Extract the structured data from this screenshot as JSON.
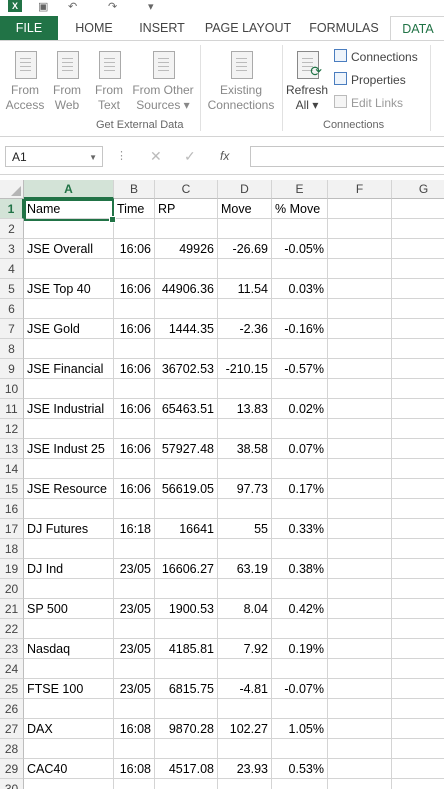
{
  "tabs": [
    "FILE",
    "HOME",
    "INSERT",
    "PAGE LAYOUT",
    "FORMULAS",
    "DATA"
  ],
  "active_tab": "DATA",
  "ribbon": {
    "external": [
      {
        "line1": "From",
        "line2": "Access",
        "icon": "access-db-icon"
      },
      {
        "line1": "From",
        "line2": "Web",
        "icon": "globe-icon"
      },
      {
        "line1": "From",
        "line2": "Text",
        "icon": "text-file-icon"
      },
      {
        "line1": "From Other",
        "line2": "Sources",
        "icon": "other-sources-icon"
      }
    ],
    "existing": {
      "line1": "Existing",
      "line2": "Connections"
    },
    "refresh": {
      "line1": "Refresh",
      "line2": "All"
    },
    "group_external": "Get External Data",
    "connections": {
      "connections": "Connections",
      "properties": "Properties",
      "edit_links": "Edit Links"
    },
    "group_connections": "Connections"
  },
  "namebox": "A1",
  "fx": "fx",
  "columns": [
    "A",
    "B",
    "C",
    "D",
    "E",
    "F",
    "G"
  ],
  "rows": [
    {
      "n": "1",
      "cells": [
        "Name",
        "Time",
        "RP",
        "Move",
        "% Move"
      ]
    },
    {
      "n": "2",
      "cells": [
        "",
        "",
        "",
        "",
        ""
      ]
    },
    {
      "n": "3",
      "cells": [
        "JSE Overall",
        "16:06",
        "49926",
        "-26.69",
        "-0.05%"
      ]
    },
    {
      "n": "4",
      "cells": [
        "",
        "",
        "",
        "",
        ""
      ]
    },
    {
      "n": "5",
      "cells": [
        "JSE Top 40",
        "16:06",
        "44906.36",
        "11.54",
        "0.03%"
      ]
    },
    {
      "n": "6",
      "cells": [
        "",
        "",
        "",
        "",
        ""
      ]
    },
    {
      "n": "7",
      "cells": [
        "JSE Gold",
        "16:06",
        "1444.35",
        "-2.36",
        "-0.16%"
      ]
    },
    {
      "n": "8",
      "cells": [
        "",
        "",
        "",
        "",
        ""
      ]
    },
    {
      "n": "9",
      "cells": [
        "JSE Financial",
        "16:06",
        "36702.53",
        "-210.15",
        "-0.57%"
      ]
    },
    {
      "n": "10",
      "cells": [
        "",
        "",
        "",
        "",
        ""
      ]
    },
    {
      "n": "11",
      "cells": [
        "JSE Industrial",
        "16:06",
        "65463.51",
        "13.83",
        "0.02%"
      ]
    },
    {
      "n": "12",
      "cells": [
        "",
        "",
        "",
        "",
        ""
      ]
    },
    {
      "n": "13",
      "cells": [
        "JSE Indust 25",
        "16:06",
        "57927.48",
        "38.58",
        "0.07%"
      ]
    },
    {
      "n": "14",
      "cells": [
        "",
        "",
        "",
        "",
        ""
      ]
    },
    {
      "n": "15",
      "cells": [
        "JSE Resource",
        "16:06",
        "56619.05",
        "97.73",
        "0.17%"
      ]
    },
    {
      "n": "16",
      "cells": [
        "",
        "",
        "",
        "",
        ""
      ]
    },
    {
      "n": "17",
      "cells": [
        "DJ Futures",
        "16:18",
        "16641",
        "55",
        "0.33%"
      ]
    },
    {
      "n": "18",
      "cells": [
        "",
        "",
        "",
        "",
        ""
      ]
    },
    {
      "n": "19",
      "cells": [
        "DJ Ind",
        "23/05",
        "16606.27",
        "63.19",
        "0.38%"
      ]
    },
    {
      "n": "20",
      "cells": [
        "",
        "",
        "",
        "",
        ""
      ]
    },
    {
      "n": "21",
      "cells": [
        "SP 500",
        "23/05",
        "1900.53",
        "8.04",
        "0.42%"
      ]
    },
    {
      "n": "22",
      "cells": [
        "",
        "",
        "",
        "",
        ""
      ]
    },
    {
      "n": "23",
      "cells": [
        "Nasdaq",
        "23/05",
        "4185.81",
        "7.92",
        "0.19%"
      ]
    },
    {
      "n": "24",
      "cells": [
        "",
        "",
        "",
        "",
        ""
      ]
    },
    {
      "n": "25",
      "cells": [
        "FTSE 100",
        "23/05",
        "6815.75",
        "-4.81",
        "-0.07%"
      ]
    },
    {
      "n": "26",
      "cells": [
        "",
        "",
        "",
        "",
        ""
      ]
    },
    {
      "n": "27",
      "cells": [
        "DAX",
        "16:08",
        "9870.28",
        "102.27",
        "1.05%"
      ]
    },
    {
      "n": "28",
      "cells": [
        "",
        "",
        "",
        "",
        ""
      ]
    },
    {
      "n": "29",
      "cells": [
        "CAC40",
        "16:08",
        "4517.08",
        "23.93",
        "0.53%"
      ]
    },
    {
      "n": "30",
      "cells": [
        "",
        "",
        "",
        "",
        ""
      ]
    }
  ],
  "colors": {
    "accent": "#217346",
    "header_bg": "#f2f2f2",
    "grid": "#d4d4d4"
  }
}
